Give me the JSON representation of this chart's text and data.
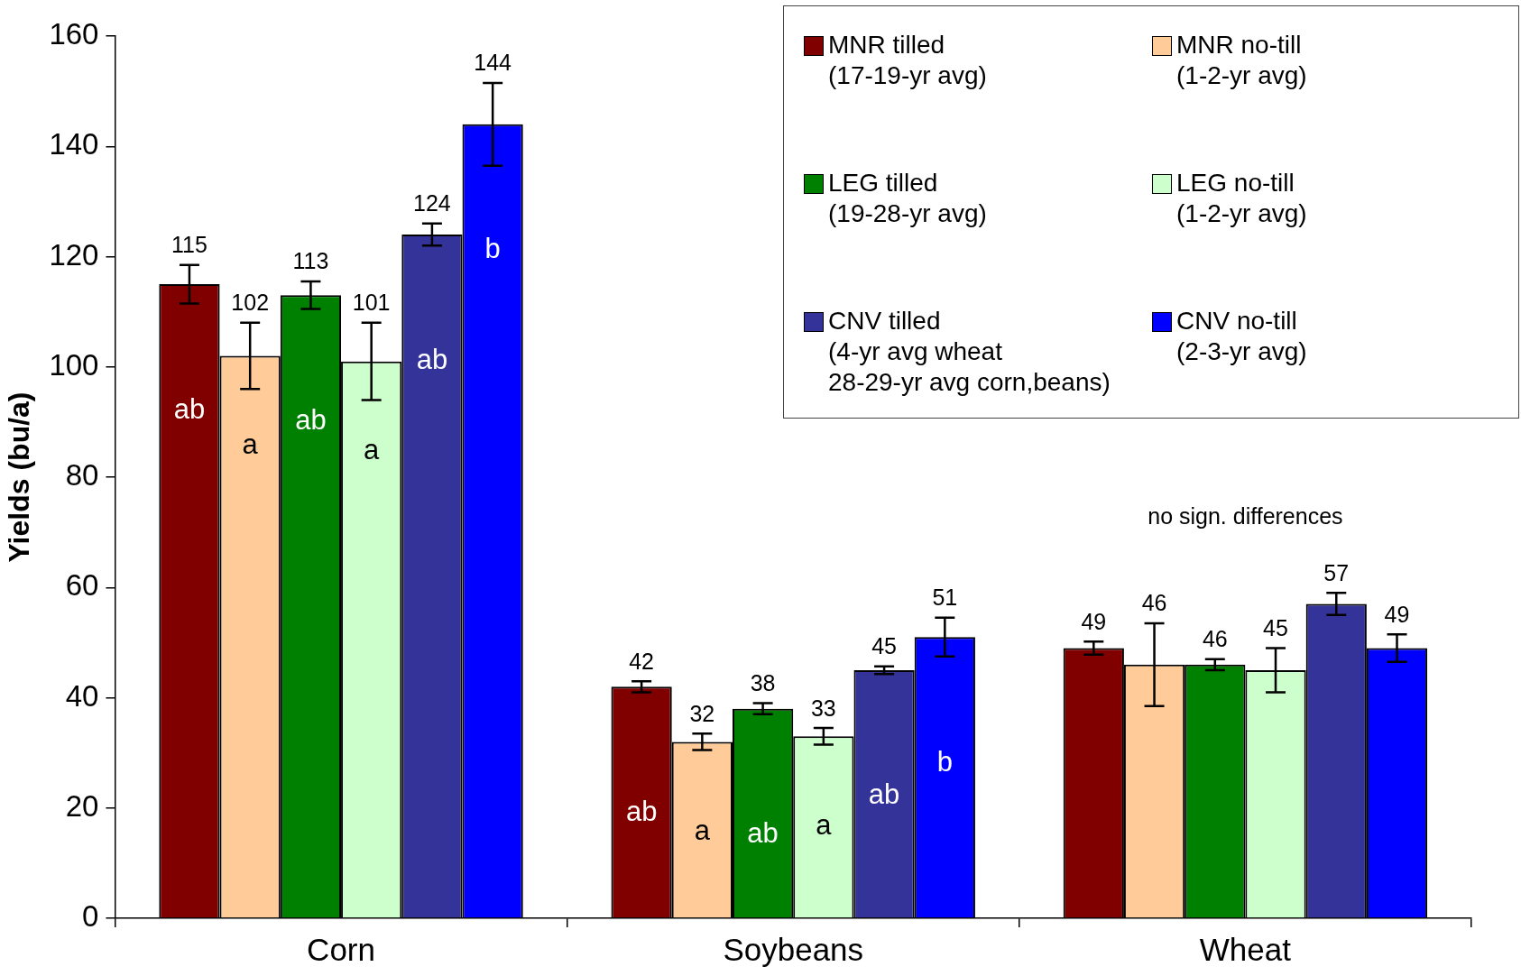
{
  "chart_data": {
    "type": "bar",
    "ylabel": "Yields (bu/a)",
    "categories": [
      "Corn",
      "Soybeans",
      "Wheat"
    ],
    "series": [
      {
        "name": "MNR tilled\n(17-19-yr avg)",
        "color": "#800000",
        "values": [
          115,
          42,
          49
        ],
        "errors": [
          3.5,
          1,
          1.2
        ]
      },
      {
        "name": "MNR no-till\n(1-2-yr avg)",
        "color": "#ffcc99",
        "values": [
          102,
          32,
          46
        ],
        "errors": [
          6,
          1.5,
          7.5
        ]
      },
      {
        "name": "LEG tilled\n(19-28-yr avg)",
        "color": "#008000",
        "values": [
          113,
          38,
          46
        ],
        "errors": [
          2.5,
          1,
          1
        ]
      },
      {
        "name": "LEG no-till\n(1-2-yr avg)",
        "color": "#ccffcc",
        "values": [
          101,
          33,
          45
        ],
        "errors": [
          7,
          1.5,
          4
        ]
      },
      {
        "name": "CNV tilled\n(4-yr avg wheat\n28-29-yr avg corn,beans)",
        "color": "#333399",
        "values": [
          124,
          45,
          57
        ],
        "errors": [
          2,
          0.7,
          2
        ]
      },
      {
        "name": "CNV no-till\n(2-3-yr avg)",
        "color": "#0000ff",
        "values": [
          144,
          51,
          49
        ],
        "errors": [
          7.5,
          3.5,
          2.5
        ]
      }
    ],
    "ylim": [
      0,
      160
    ],
    "yticks": [
      0,
      20,
      40,
      60,
      80,
      100,
      120,
      140,
      160
    ],
    "data_labels": true,
    "legend": "top right",
    "annotations": [
      "ab",
      "a",
      "ab",
      "a",
      "ab",
      "b",
      "ab",
      "a",
      "ab",
      "a",
      "ab",
      "b",
      "no sign. differences"
    ]
  }
}
